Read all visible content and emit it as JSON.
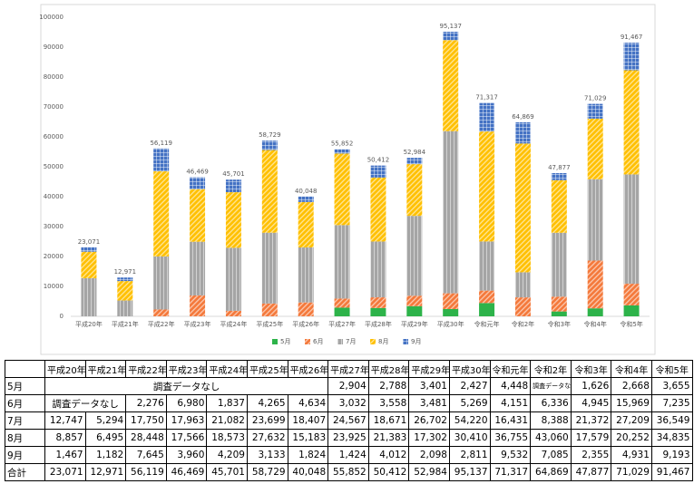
{
  "chart_data": {
    "type": "bar",
    "stacked": true,
    "categories": [
      "平成20年",
      "平成21年",
      "平成22年",
      "平成23年",
      "平成24年",
      "平成25年",
      "平成26年",
      "平成27年",
      "平成28年",
      "平成29年",
      "平成30年",
      "令和元年",
      "令和2年",
      "令和3年",
      "令和4年",
      "令和5年"
    ],
    "series": [
      {
        "name": "5月",
        "color": "#2db34a",
        "values": [
          null,
          null,
          null,
          null,
          null,
          null,
          null,
          2904,
          2788,
          3401,
          2427,
          4448,
          null,
          1626,
          2668,
          3655
        ],
        "value_labels": [
          null,
          null,
          null,
          null,
          null,
          null,
          null,
          "2,904",
          "2,788",
          "3,401",
          "2,427",
          "4,448",
          null,
          "1,626",
          "2,668",
          "3,655"
        ]
      },
      {
        "name": "6月",
        "color": "#f4793b",
        "values": [
          null,
          null,
          2276,
          6980,
          1837,
          4265,
          4634,
          3032,
          3558,
          3481,
          5269,
          4151,
          6336,
          4945,
          15969,
          7235
        ],
        "value_labels": [
          null,
          null,
          "2,276",
          "6,980",
          "1,837",
          "4,265",
          "4,634",
          "3,032",
          "3,558",
          "3,481",
          "5,269",
          "4,151",
          "6,336",
          "4,945",
          "15,969",
          "7,235"
        ]
      },
      {
        "name": "7月",
        "color": "#a5a5a5",
        "values": [
          12747,
          5294,
          17750,
          17963,
          21082,
          23699,
          18407,
          24567,
          18671,
          26702,
          54220,
          16431,
          8388,
          21372,
          27209,
          36549
        ],
        "value_labels": [
          "12,747",
          "5,294",
          "17,750",
          "17,963",
          "21,082",
          "23,699",
          "18,407",
          "24,567",
          "18,671",
          "26,702",
          "54,220",
          "16,431",
          "8,388",
          "21,372",
          "27,209",
          "36,549"
        ]
      },
      {
        "name": "8月",
        "color": "#ffc000",
        "values": [
          8857,
          6495,
          28448,
          17566,
          18573,
          27632,
          15183,
          23925,
          21383,
          17302,
          30410,
          36755,
          43060,
          17579,
          20252,
          34835
        ],
        "value_labels": [
          "8,857",
          "6,495",
          "28,448",
          "17,566",
          "18,573",
          "27,632",
          "15,183",
          "23,925",
          "21,383",
          "17,302",
          "30,410",
          "36,755",
          "43,060",
          "17,579",
          "20,252",
          "34,835"
        ]
      },
      {
        "name": "9月",
        "color": "#4472c4",
        "values": [
          1467,
          1182,
          7645,
          3960,
          4209,
          3133,
          1824,
          1424,
          4012,
          2098,
          2811,
          9532,
          7085,
          2355,
          4931,
          9193
        ],
        "value_labels": [
          "1,467",
          "1,182",
          "7,645",
          "3,960",
          "4,209",
          "3,133",
          "1,824",
          "1,424",
          "4,012",
          "2,098",
          "2,811",
          "9,532",
          "7,085",
          "2,355",
          "4,931",
          "9,193"
        ]
      }
    ],
    "total_labels": [
      "23,071",
      "12,971",
      "56,119",
      "46,469",
      "45,701",
      "58,729",
      "40,048",
      "55,852",
      "50,412",
      "52,984",
      "95,137",
      "71,317",
      "64,869",
      "47,877",
      "71,029",
      "91,467"
    ],
    "ylim": [
      0,
      100000
    ],
    "yticks": [
      0,
      10000,
      20000,
      30000,
      40000,
      50000,
      60000,
      70000,
      80000,
      90000,
      100000
    ],
    "grid": false,
    "legend": "bottom"
  },
  "table": {
    "no_data_label": "調査データなし",
    "total_row_label": "合計"
  }
}
